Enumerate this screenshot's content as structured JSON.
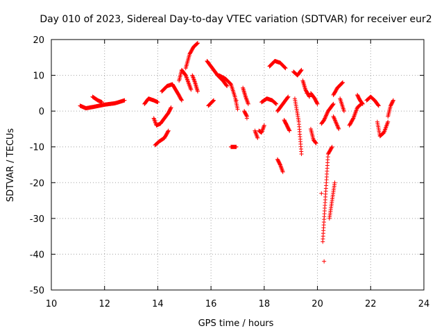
{
  "chart_data": {
    "type": "scatter",
    "title": "Day 010 of 2023, Sidereal Day-to-day VTEC variation (SDTVAR) for receiver eur2",
    "xlabel": "GPS time / hours",
    "ylabel": "SDTVAR / TECUs",
    "xlim": [
      10,
      24
    ],
    "ylim": [
      -50,
      20
    ],
    "xticks": [
      "10",
      "12",
      "14",
      "16",
      "18",
      "20",
      "22",
      "24"
    ],
    "yticks": [
      "20",
      "10",
      "0",
      "-10",
      "-20",
      "-30",
      "-40",
      "-50"
    ],
    "grid": true,
    "marker": "plus",
    "color": "#ff0000",
    "segments": [
      {
        "x": [
          11.08,
          11.3,
          11.6,
          12.0,
          12.4,
          12.75
        ],
        "y": [
          1.5,
          0.8,
          1.2,
          1.8,
          2.2,
          3.0
        ]
      },
      {
        "x": [
          11.55,
          11.75,
          11.9
        ],
        "y": [
          4.0,
          3.0,
          2.5
        ]
      },
      {
        "x": [
          13.5,
          13.65,
          13.85,
          14.0
        ],
        "y": [
          2.0,
          3.5,
          3.0,
          2.5
        ]
      },
      {
        "x": [
          13.85,
          13.95,
          14.1,
          14.25,
          14.4,
          14.5
        ],
        "y": [
          -2.0,
          -4.0,
          -3.5,
          -2.0,
          -0.5,
          1.0
        ]
      },
      {
        "x": [
          13.9,
          14.05,
          14.25,
          14.4
        ],
        "y": [
          -9.5,
          -8.5,
          -7.5,
          -5.5
        ]
      },
      {
        "x": [
          14.15,
          14.35,
          14.55,
          14.75,
          14.9
        ],
        "y": [
          5.5,
          7.0,
          7.5,
          5.0,
          3.0
        ]
      },
      {
        "x": [
          14.8,
          14.9,
          15.05,
          15.15,
          15.25
        ],
        "y": [
          8.5,
          11.5,
          10.0,
          8.0,
          6.0
        ]
      },
      {
        "x": [
          15.05,
          15.2,
          15.35,
          15.5
        ],
        "y": [
          12.0,
          16.0,
          18.0,
          19.0
        ]
      },
      {
        "x": [
          15.3,
          15.4,
          15.5
        ],
        "y": [
          10.0,
          8.0,
          5.5
        ]
      },
      {
        "x": [
          15.85,
          16.05,
          16.25,
          16.45,
          16.6
        ],
        "y": [
          14.0,
          12.0,
          10.0,
          8.5,
          7.0
        ]
      },
      {
        "x": [
          15.9,
          16.1
        ],
        "y": [
          1.5,
          3.0
        ]
      },
      {
        "x": [
          16.3,
          16.55,
          16.75,
          16.9,
          17.0
        ],
        "y": [
          10.0,
          9.0,
          7.5,
          4.0,
          0.5
        ]
      },
      {
        "x": [
          16.75,
          16.95
        ],
        "y": [
          -10.0,
          -10.0
        ]
      },
      {
        "x": [
          17.2,
          17.3,
          17.4
        ],
        "y": [
          6.5,
          4.0,
          2.0
        ]
      },
      {
        "x": [
          17.25,
          17.35
        ],
        "y": [
          0.0,
          -1.5
        ]
      },
      {
        "x": [
          17.65,
          17.75
        ],
        "y": [
          -5.5,
          -7.5
        ]
      },
      {
        "x": [
          17.8,
          17.9,
          18.0
        ],
        "y": [
          -5.5,
          -6.0,
          -4.0
        ]
      },
      {
        "x": [
          17.9,
          18.1,
          18.3,
          18.45
        ],
        "y": [
          2.5,
          3.5,
          3.0,
          2.0
        ]
      },
      {
        "x": [
          18.2,
          18.4,
          18.6,
          18.8
        ],
        "y": [
          12.5,
          14.0,
          13.5,
          12.0
        ]
      },
      {
        "x": [
          18.5,
          18.6,
          18.7
        ],
        "y": [
          -13.5,
          -15.0,
          -17.0
        ]
      },
      {
        "x": [
          18.5,
          18.7,
          18.9
        ],
        "y": [
          0.0,
          2.0,
          4.0
        ]
      },
      {
        "x": [
          18.75,
          18.85,
          18.95
        ],
        "y": [
          -2.5,
          -4.0,
          -5.5
        ]
      },
      {
        "x": [
          19.1,
          19.25,
          19.4
        ],
        "y": [
          11.0,
          10.0,
          11.5
        ]
      },
      {
        "x": [
          19.15,
          19.3,
          19.4
        ],
        "y": [
          3.5,
          -3.0,
          -12.0
        ]
      },
      {
        "x": [
          19.45,
          19.55,
          19.7
        ],
        "y": [
          8.5,
          6.0,
          4.0
        ]
      },
      {
        "x": [
          19.75,
          19.9,
          20.0
        ],
        "y": [
          5.0,
          3.5,
          2.0
        ]
      },
      {
        "x": [
          19.75,
          19.85,
          19.95
        ],
        "y": [
          -5.0,
          -8.0,
          -9.0
        ]
      },
      {
        "x": [
          20.15,
          20.25,
          20.4,
          20.6
        ],
        "y": [
          -3.5,
          -2.5,
          0.0,
          2.0
        ]
      },
      {
        "x": [
          20.2,
          20.3,
          20.4,
          20.55
        ],
        "y": [
          -36.5,
          -24.0,
          -12.0,
          -10.0
        ]
      },
      {
        "x": [
          20.45,
          20.55,
          20.65
        ],
        "y": [
          -30.0,
          -25.0,
          -20.0
        ]
      },
      {
        "x": [
          20.6,
          20.75,
          20.95
        ],
        "y": [
          4.5,
          6.5,
          8.0
        ]
      },
      {
        "x": [
          20.6,
          20.8
        ],
        "y": [
          -1.5,
          -5.0
        ]
      },
      {
        "x": [
          20.85,
          21.0
        ],
        "y": [
          3.5,
          0.0
        ]
      },
      {
        "x": [
          21.2,
          21.35,
          21.5,
          21.65
        ],
        "y": [
          -4.0,
          -2.0,
          1.0,
          2.0
        ]
      },
      {
        "x": [
          21.5,
          21.6,
          21.7
        ],
        "y": [
          4.5,
          3.0,
          2.0
        ]
      },
      {
        "x": [
          21.85,
          22.0,
          22.15,
          22.3
        ],
        "y": [
          3.0,
          4.0,
          3.0,
          1.5
        ]
      },
      {
        "x": [
          22.25,
          22.35,
          22.5,
          22.65
        ],
        "y": [
          -3.0,
          -7.0,
          -6.0,
          -3.0
        ]
      },
      {
        "x": [
          22.65,
          22.75,
          22.85
        ],
        "y": [
          -1.5,
          1.5,
          3.0
        ]
      }
    ],
    "points": [
      {
        "x": 20.25,
        "y": -42.0
      },
      {
        "x": 16.95,
        "y": 3.0
      },
      {
        "x": 17.35,
        "y": -2.0
      },
      {
        "x": 19.6,
        "y": 5.0
      },
      {
        "x": 20.15,
        "y": -23.0
      }
    ]
  }
}
